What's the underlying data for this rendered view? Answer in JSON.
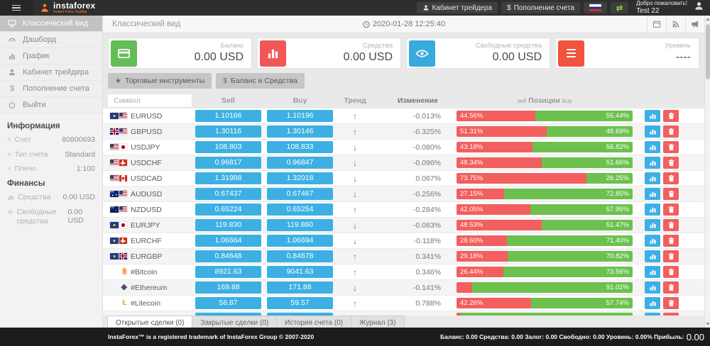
{
  "topbar": {
    "brand": "instaforex",
    "brand_subtitle": "Instant Forex Trading",
    "trader_cabinet_label": "Кабинет трейдера",
    "deposit_label": "Пополнение счета",
    "welcome": "Добро пожаловать!",
    "username": "Test 22"
  },
  "sidebar": {
    "items": [
      {
        "label": "Классический вид",
        "icon": "monitor-icon",
        "active": true
      },
      {
        "label": "Дашборд",
        "icon": "dashboard-icon",
        "active": false
      },
      {
        "label": "График",
        "icon": "chart-icon",
        "active": false
      },
      {
        "label": "Кабинет трейдера",
        "icon": "user-icon",
        "active": false
      },
      {
        "label": "Пополнение счета",
        "icon": "dollar-icon",
        "active": false
      },
      {
        "label": "Выйти",
        "icon": "power-icon",
        "active": false
      }
    ],
    "info_title": "Информация",
    "info": [
      {
        "label": "Счет",
        "value": "80800693"
      },
      {
        "label": "Тип счета",
        "value": "Standard"
      },
      {
        "label": "Плечо",
        "value": "1:100"
      }
    ],
    "finance_title": "Финансы",
    "finance": [
      {
        "label": "Средства",
        "value": "0.00 USD",
        "icon": "bar-chart-icon"
      },
      {
        "label": "Свободные средства",
        "value": "0.00 USD",
        "icon": "eye-icon"
      }
    ]
  },
  "header": {
    "title": "Классический вид",
    "datetime": "2020-01-28 12:25:40"
  },
  "cards": [
    {
      "label": "Баланс",
      "value": "0.00 USD",
      "icon": "credit-card-icon",
      "color": "#63bd57"
    },
    {
      "label": "Средства",
      "value": "0.00 USD",
      "icon": "bar-chart-icon",
      "color": "#f25656"
    },
    {
      "label": "Свободные средства",
      "value": "0.00 USD",
      "icon": "eye-icon",
      "color": "#38aade"
    },
    {
      "label": "Уровень",
      "value": "----",
      "icon": "menu-icon",
      "color": "#f0543f"
    }
  ],
  "toolbar": {
    "instruments_label": "Торговые инструменты",
    "balance_label": "Баланс и Средства"
  },
  "table": {
    "symbol_filter_placeholder": "Символ",
    "headers": {
      "sell": "Sell",
      "buy": "Buy",
      "trend": "Тренд",
      "change": "Изменение",
      "positions_left": "sell",
      "positions_center": "Позиции",
      "positions_right": "buy"
    },
    "rows": [
      {
        "symbol": "EURUSD",
        "flags": [
          "eu",
          "us"
        ],
        "sell": "1.10166",
        "buy": "1.10196",
        "trend": "up",
        "change": "-0.013%",
        "sell_pct": "44.56%",
        "buy_pct": "55.44%",
        "sell_width": 44.56,
        "buy_width": 55.44
      },
      {
        "symbol": "GBPUSD",
        "flags": [
          "gb",
          "us"
        ],
        "sell": "1.30116",
        "buy": "1.30146",
        "trend": "up",
        "change": "-0.325%",
        "sell_pct": "51.31%",
        "buy_pct": "48.69%",
        "sell_width": 51.31,
        "buy_width": 48.69
      },
      {
        "symbol": "USDJPY",
        "flags": [
          "us",
          "jp"
        ],
        "sell": "108.803",
        "buy": "108.833",
        "trend": "down",
        "change": "-0.080%",
        "sell_pct": "43.18%",
        "buy_pct": "56.82%",
        "sell_width": 43.18,
        "buy_width": 56.82
      },
      {
        "symbol": "USDCHF",
        "flags": [
          "us",
          "ch"
        ],
        "sell": "0.96817",
        "buy": "0.96847",
        "trend": "down",
        "change": "-0.096%",
        "sell_pct": "48.34%",
        "buy_pct": "51.66%",
        "sell_width": 48.34,
        "buy_width": 51.66
      },
      {
        "symbol": "USDCAD",
        "flags": [
          "us",
          "ca"
        ],
        "sell": "1.31988",
        "buy": "1.32018",
        "trend": "down",
        "change": "0.067%",
        "sell_pct": "73.75%",
        "buy_pct": "26.25%",
        "sell_width": 73.75,
        "buy_width": 26.25
      },
      {
        "symbol": "AUDUSD",
        "flags": [
          "au",
          "us"
        ],
        "sell": "0.67437",
        "buy": "0.67467",
        "trend": "down",
        "change": "-0.256%",
        "sell_pct": "27.15%",
        "buy_pct": "72.85%",
        "sell_width": 27.15,
        "buy_width": 72.85
      },
      {
        "symbol": "NZDUSD",
        "flags": [
          "nz",
          "us"
        ],
        "sell": "0.65224",
        "buy": "0.65254",
        "trend": "up",
        "change": "-0.284%",
        "sell_pct": "42.05%",
        "buy_pct": "57.95%",
        "sell_width": 42.05,
        "buy_width": 57.95
      },
      {
        "symbol": "EURJPY",
        "flags": [
          "eu",
          "jp"
        ],
        "sell": "119.830",
        "buy": "119.860",
        "trend": "down",
        "change": "-0.083%",
        "sell_pct": "48.53%",
        "buy_pct": "51.47%",
        "sell_width": 48.53,
        "buy_width": 51.47
      },
      {
        "symbol": "EURCHF",
        "flags": [
          "eu",
          "ch"
        ],
        "sell": "1.06664",
        "buy": "1.06694",
        "trend": "down",
        "change": "-0.118%",
        "sell_pct": "28.60%",
        "buy_pct": "71.40%",
        "sell_width": 28.6,
        "buy_width": 71.4
      },
      {
        "symbol": "EURGBP",
        "flags": [
          "eu",
          "gb"
        ],
        "sell": "0.84648",
        "buy": "0.84678",
        "trend": "up",
        "change": "0.341%",
        "sell_pct": "29.18%",
        "buy_pct": "70.82%",
        "sell_width": 29.18,
        "buy_width": 70.82
      },
      {
        "symbol": "#Bitcoin",
        "crypto_char": "฿",
        "crypto_color": "#f7931a",
        "sell": "8921.63",
        "buy": "9041.63",
        "trend": "up",
        "change": "0.346%",
        "sell_pct": "26.44%",
        "buy_pct": "73.56%",
        "sell_width": 26.44,
        "buy_width": 73.56
      },
      {
        "symbol": "#Ethereum",
        "crypto_char": "◆",
        "crypto_color": "#4a4f6e",
        "sell": "169.88",
        "buy": "171.88",
        "trend": "down",
        "change": "-0.141%",
        "sell_pct": "",
        "buy_pct": "91.02%",
        "sell_width": 8.98,
        "buy_width": 91.02
      },
      {
        "symbol": "#Litecoin",
        "crypto_char": "Ł",
        "crypto_color": "#dfb22f",
        "sell": "58.87",
        "buy": "59.57",
        "trend": "up",
        "change": "0.788%",
        "sell_pct": "42.26%",
        "buy_pct": "57.74%",
        "sell_width": 42.26,
        "buy_width": 57.74
      },
      {
        "symbol": "",
        "sell": "",
        "buy": "",
        "trend": "",
        "change": "",
        "sell_pct": "",
        "buy_pct": "",
        "sell_width": 2.5,
        "buy_width": 97.5,
        "partial": true
      }
    ]
  },
  "tabs": [
    {
      "label": "Открытые сделки (0)",
      "active": true
    },
    {
      "label": "Закрытые сделки (0)",
      "active": false
    },
    {
      "label": "История счета (0)",
      "active": false
    },
    {
      "label": "Журнал (3)",
      "active": false
    }
  ],
  "footer": {
    "copyright": "InstaForex™ is a registered trademark of InstaForex Group © 2007-2020",
    "stats": "Баланс: 0.00 Средства: 0.00 Залог: 0.00 Свободно: 0.00 Уровень: 0.00% Прибыль:",
    "profit_value": "0.00"
  }
}
